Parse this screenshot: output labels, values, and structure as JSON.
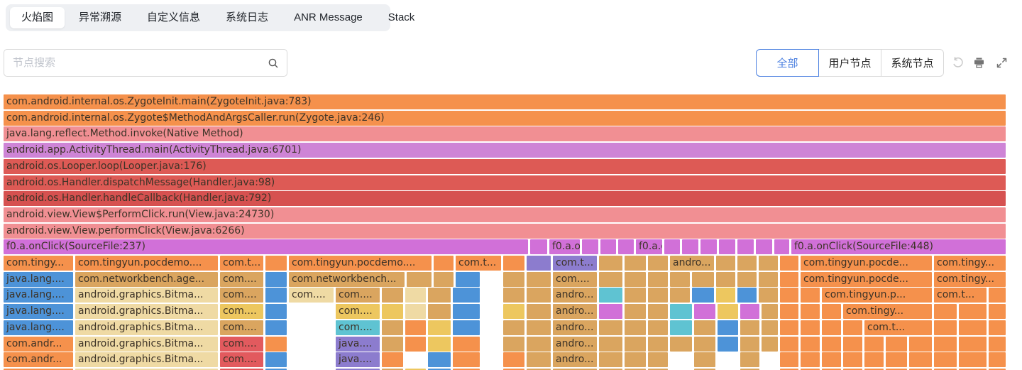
{
  "tabs": {
    "items": [
      {
        "label": "火焰图",
        "active": true
      },
      {
        "label": "异常溯源",
        "active": false
      },
      {
        "label": "自定义信息",
        "active": false
      },
      {
        "label": "系统日志",
        "active": false
      },
      {
        "label": "ANR Message",
        "active": false
      },
      {
        "label": "Stack",
        "active": false
      }
    ]
  },
  "toolbar": {
    "search_placeholder": "节点搜索",
    "filters": [
      {
        "label": "全部",
        "active": true
      },
      {
        "label": "用户节点",
        "active": false
      },
      {
        "label": "系统节点",
        "active": false
      }
    ],
    "icons": [
      "undo-icon",
      "print-icon",
      "fullscreen-icon"
    ],
    "accent_color": "#4a7fe0"
  },
  "flame": {
    "palette": {
      "or": "#F5914C",
      "pk": "#F18F93",
      "oc": "#CE84D6",
      "rd": "#DD5A55",
      "rd2": "#D65150",
      "rc": "#E25A5E",
      "mg": "#D170D8",
      "pu": "#8C7CCE",
      "bl": "#4D93D8",
      "tn": "#DAA55F",
      "cr": "#EFDAA4",
      "yl": "#EDC75F",
      "tl": "#5FC3D2"
    },
    "rows": [
      [
        [
          5,
          1417,
          "or",
          "com.android.internal.os.ZygoteInit.main(ZygoteInit.java:783)"
        ]
      ],
      [
        [
          5,
          1417,
          "or",
          "com.android.internal.os.Zygote$MethodAndArgsCaller.run(Zygote.java:246)"
        ]
      ],
      [
        [
          5,
          1417,
          "pk",
          "java.lang.reflect.Method.invoke(Native Method)"
        ]
      ],
      [
        [
          5,
          1417,
          "oc",
          "android.app.ActivityThread.main(ActivityThread.java:6701)"
        ]
      ],
      [
        [
          5,
          1417,
          "rd",
          "android.os.Looper.loop(Looper.java:176)"
        ]
      ],
      [
        [
          5,
          1417,
          "rd",
          "android.os.Handler.dispatchMessage(Handler.java:98)"
        ]
      ],
      [
        [
          5,
          1417,
          "rd2",
          "android.os.Handler.handleCallback(Handler.java:792)"
        ]
      ],
      [
        [
          5,
          1417,
          "pk",
          "android.view.View$PerformClick.run(View.java:24730)"
        ]
      ],
      [
        [
          5,
          1417,
          "pk",
          "android.view.View.performClick(View.java:6266)"
        ]
      ],
      [
        [
          5,
          744,
          "mg",
          "f0.a.onClick(SourceFile:237)"
        ],
        [
          747,
          771,
          "mg"
        ],
        [
          774,
          817,
          "mg",
          "f0.a.o..."
        ],
        [
          820,
          843,
          "mg"
        ],
        [
          846,
          868,
          "mg"
        ],
        [
          871,
          893,
          "mg"
        ],
        [
          896,
          933,
          "mg",
          "f0.a.o..."
        ],
        [
          936,
          958,
          "mg"
        ],
        [
          961,
          984,
          "mg"
        ],
        [
          987,
          1010,
          "mg"
        ],
        [
          1013,
          1036,
          "mg"
        ],
        [
          1039,
          1062,
          "mg"
        ],
        [
          1065,
          1088,
          "mg"
        ],
        [
          1091,
          1112,
          "mg"
        ],
        [
          1115,
          1417,
          "mg",
          "f0.a.onClick(SourceFile:448)"
        ]
      ],
      [
        [
          5,
          103,
          "or",
          "com.tingy..."
        ],
        [
          106,
          307,
          "or",
          "com.tingyun.pocdemo...."
        ],
        [
          310,
          371,
          "or",
          "com.t..."
        ],
        [
          374,
          404,
          "or"
        ],
        [
          407,
          608,
          "or",
          "com.tingyun.pocdemo...."
        ],
        [
          611,
          639,
          "or"
        ],
        [
          642,
          706,
          "or",
          "com.t..."
        ],
        [
          709,
          739,
          "or"
        ],
        [
          742,
          776,
          "pu"
        ],
        [
          779,
          841,
          "pu",
          "com.t..."
        ],
        [
          844,
          877,
          "tn"
        ],
        [
          880,
          910,
          "tn"
        ],
        [
          913,
          941,
          "tn"
        ],
        [
          944,
          1006,
          "tn",
          "andro..."
        ],
        [
          1009,
          1036,
          "tn"
        ],
        [
          1039,
          1066,
          "tn"
        ],
        [
          1069,
          1096,
          "tn"
        ],
        [
          1099,
          1125,
          "or"
        ],
        [
          1128,
          1313,
          "or",
          "com.tingyun.pocde..."
        ],
        [
          1316,
          1417,
          "or",
          "com.tingy..."
        ]
      ],
      [
        [
          5,
          103,
          "bl",
          "java.lang...."
        ],
        [
          106,
          307,
          "tn",
          "com.networkbench.age..."
        ],
        [
          310,
          371,
          "tn",
          "com...."
        ],
        [
          374,
          404,
          "bl"
        ],
        [
          407,
          570,
          "tn",
          "com.networkbench..."
        ],
        [
          573,
          608,
          "tn"
        ],
        [
          611,
          639,
          "tn"
        ],
        [
          642,
          676,
          "bl"
        ],
        [
          709,
          739,
          "tn"
        ],
        [
          742,
          776,
          "tn"
        ],
        [
          779,
          841,
          "tn",
          "com...."
        ],
        [
          844,
          877,
          "tn"
        ],
        [
          880,
          910,
          "tn"
        ],
        [
          913,
          941,
          "tn"
        ],
        [
          944,
          972,
          "tn"
        ],
        [
          975,
          1006,
          "tn"
        ],
        [
          1009,
          1036,
          "tn"
        ],
        [
          1039,
          1066,
          "tn"
        ],
        [
          1069,
          1096,
          "tn"
        ],
        [
          1099,
          1125,
          "or"
        ],
        [
          1128,
          1313,
          "or",
          "com.tingyun.pocde..."
        ],
        [
          1316,
          1417,
          "or",
          "com.tingy..."
        ]
      ],
      [
        [
          5,
          103,
          "bl",
          "java.lang...."
        ],
        [
          106,
          307,
          "cr",
          "android.graphics.Bitma..."
        ],
        [
          310,
          371,
          "tn",
          "com...."
        ],
        [
          374,
          404,
          "bl"
        ],
        [
          407,
          470,
          "cr",
          "com...."
        ],
        [
          473,
          535,
          "tn",
          "com...."
        ],
        [
          538,
          568,
          "tn"
        ],
        [
          571,
          600,
          "cr"
        ],
        [
          603,
          635,
          "tn"
        ],
        [
          638,
          676,
          "bl"
        ],
        [
          709,
          739,
          "tn"
        ],
        [
          742,
          776,
          "tn"
        ],
        [
          779,
          841,
          "tn",
          "andro..."
        ],
        [
          844,
          877,
          "tl"
        ],
        [
          880,
          910,
          "tn"
        ],
        [
          913,
          941,
          "tn"
        ],
        [
          944,
          972,
          "tn"
        ],
        [
          975,
          1006,
          "bl"
        ],
        [
          1009,
          1036,
          "yl"
        ],
        [
          1039,
          1066,
          "bl"
        ],
        [
          1069,
          1096,
          "tn"
        ],
        [
          1099,
          1125,
          "or"
        ],
        [
          1128,
          1155,
          "or"
        ],
        [
          1158,
          1313,
          "or",
          "com.tingyun.p..."
        ],
        [
          1316,
          1390,
          "or",
          "com.t..."
        ],
        [
          1393,
          1417,
          "or"
        ]
      ],
      [
        [
          5,
          103,
          "bl",
          "java.lang...."
        ],
        [
          106,
          307,
          "cr",
          "android.graphics.Bitma..."
        ],
        [
          310,
          371,
          "yl",
          "com...."
        ],
        [
          374,
          404,
          "bl"
        ],
        [
          473,
          535,
          "yl",
          "com...."
        ],
        [
          538,
          568,
          "yl"
        ],
        [
          571,
          600,
          "cr"
        ],
        [
          603,
          635,
          "tn"
        ],
        [
          638,
          676,
          "bl"
        ],
        [
          709,
          739,
          "yl"
        ],
        [
          742,
          776,
          "tn"
        ],
        [
          779,
          841,
          "tn",
          "andro..."
        ],
        [
          844,
          877,
          "mg"
        ],
        [
          880,
          910,
          "tn"
        ],
        [
          913,
          941,
          "tn"
        ],
        [
          944,
          975,
          "tl"
        ],
        [
          978,
          1008,
          "mg"
        ],
        [
          1011,
          1040,
          "yl"
        ],
        [
          1043,
          1070,
          "mg"
        ],
        [
          1073,
          1096,
          "tn"
        ],
        [
          1099,
          1125,
          "or"
        ],
        [
          1128,
          1155,
          "or"
        ],
        [
          1158,
          1185,
          "or"
        ],
        [
          1188,
          1313,
          "or",
          "com.tingy..."
        ],
        [
          1316,
          1348,
          "or"
        ],
        [
          1351,
          1390,
          "or"
        ],
        [
          1393,
          1417,
          "or"
        ]
      ],
      [
        [
          5,
          103,
          "bl",
          "java.lang...."
        ],
        [
          106,
          307,
          "cr",
          "android.graphics.Bitma..."
        ],
        [
          310,
          371,
          "tn",
          "com...."
        ],
        [
          374,
          404,
          "bl"
        ],
        [
          473,
          535,
          "tl",
          "com...."
        ],
        [
          538,
          568,
          "tn"
        ],
        [
          571,
          600,
          "or"
        ],
        [
          603,
          635,
          "yl"
        ],
        [
          638,
          676,
          "bl"
        ],
        [
          709,
          739,
          "tn"
        ],
        [
          742,
          776,
          "tn"
        ],
        [
          779,
          841,
          "tn",
          "andro..."
        ],
        [
          844,
          877,
          "tn"
        ],
        [
          880,
          910,
          "tn"
        ],
        [
          913,
          941,
          "tn"
        ],
        [
          944,
          975,
          "tl"
        ],
        [
          978,
          1008,
          "tn"
        ],
        [
          1011,
          1040,
          "bl"
        ],
        [
          1043,
          1070,
          "tn"
        ],
        [
          1073,
          1096,
          "tn"
        ],
        [
          1099,
          1125,
          "or"
        ],
        [
          1128,
          1155,
          "or"
        ],
        [
          1158,
          1185,
          "or"
        ],
        [
          1188,
          1215,
          "or"
        ],
        [
          1218,
          1313,
          "or",
          "com.t..."
        ],
        [
          1316,
          1348,
          "or"
        ],
        [
          1351,
          1390,
          "or"
        ],
        [
          1393,
          1417,
          "or"
        ]
      ],
      [
        [
          5,
          103,
          "or",
          "com.andr..."
        ],
        [
          106,
          307,
          "cr",
          "android.graphics.Bitma..."
        ],
        [
          310,
          371,
          "rc",
          "com...."
        ],
        [
          374,
          404,
          "or"
        ],
        [
          473,
          535,
          "pu",
          "java...."
        ],
        [
          538,
          568,
          "tn"
        ],
        [
          571,
          600,
          "or"
        ],
        [
          603,
          635,
          "yl"
        ],
        [
          638,
          676,
          "or"
        ],
        [
          709,
          739,
          "tn"
        ],
        [
          742,
          776,
          "tn"
        ],
        [
          779,
          841,
          "tn",
          "andro..."
        ],
        [
          844,
          877,
          "tn"
        ],
        [
          880,
          910,
          "tn"
        ],
        [
          913,
          941,
          "tn"
        ],
        [
          944,
          975,
          "tn"
        ],
        [
          978,
          1008,
          "tn"
        ],
        [
          1011,
          1040,
          "bl"
        ],
        [
          1043,
          1070,
          "tn"
        ],
        [
          1073,
          1096,
          "tn"
        ],
        [
          1099,
          1125,
          "or"
        ],
        [
          1128,
          1155,
          "or"
        ],
        [
          1158,
          1185,
          "or"
        ],
        [
          1188,
          1215,
          "or"
        ],
        [
          1218,
          1245,
          "or"
        ],
        [
          1248,
          1278,
          "or"
        ],
        [
          1281,
          1313,
          "or"
        ],
        [
          1316,
          1348,
          "or"
        ],
        [
          1351,
          1390,
          "or"
        ],
        [
          1393,
          1417,
          "or"
        ]
      ],
      [
        [
          5,
          103,
          "or",
          "com.andr..."
        ],
        [
          106,
          307,
          "cr",
          "android.graphics.Bitma..."
        ],
        [
          310,
          371,
          "rc",
          "com...."
        ],
        [
          374,
          404,
          "bl"
        ],
        [
          473,
          535,
          "pu",
          "java...."
        ],
        [
          538,
          568,
          "or"
        ],
        [
          603,
          635,
          "bl"
        ],
        [
          638,
          676,
          "or"
        ],
        [
          709,
          739,
          "or"
        ],
        [
          742,
          776,
          "tn"
        ],
        [
          779,
          841,
          "tn",
          "andro..."
        ],
        [
          844,
          877,
          "tn"
        ],
        [
          880,
          910,
          "tn"
        ],
        [
          913,
          941,
          "tn"
        ],
        [
          978,
          1008,
          "tn"
        ],
        [
          1043,
          1070,
          "tn"
        ],
        [
          1099,
          1125,
          "or"
        ],
        [
          1128,
          1155,
          "or"
        ],
        [
          1158,
          1185,
          "or"
        ],
        [
          1188,
          1215,
          "or"
        ],
        [
          1218,
          1245,
          "or"
        ],
        [
          1248,
          1278,
          "or"
        ],
        [
          1281,
          1313,
          "or"
        ],
        [
          1316,
          1348,
          "or"
        ],
        [
          1351,
          1390,
          "or"
        ],
        [
          1393,
          1417,
          "or"
        ]
      ],
      [
        [
          5,
          103,
          "or"
        ],
        [
          106,
          307,
          "cr"
        ],
        [
          310,
          371,
          "rc"
        ],
        [
          374,
          404,
          "bl"
        ],
        [
          473,
          535,
          "pu"
        ],
        [
          538,
          568,
          "tn"
        ],
        [
          571,
          600,
          "yl"
        ],
        [
          603,
          635,
          "bl"
        ],
        [
          638,
          676,
          "or"
        ],
        [
          709,
          739,
          "or"
        ],
        [
          742,
          776,
          "tn"
        ],
        [
          779,
          841,
          "tn"
        ],
        [
          844,
          877,
          "tn"
        ],
        [
          880,
          910,
          "tn"
        ],
        [
          913,
          941,
          "tn"
        ],
        [
          978,
          1008,
          "tn"
        ],
        [
          1043,
          1070,
          "tn"
        ],
        [
          1099,
          1125,
          "or"
        ],
        [
          1128,
          1155,
          "or"
        ],
        [
          1158,
          1185,
          "or"
        ],
        [
          1188,
          1215,
          "or"
        ],
        [
          1218,
          1245,
          "or"
        ],
        [
          1248,
          1278,
          "or"
        ],
        [
          1281,
          1313,
          "or"
        ],
        [
          1316,
          1348,
          "or"
        ],
        [
          1351,
          1390,
          "or"
        ],
        [
          1393,
          1417,
          "or"
        ]
      ]
    ]
  }
}
